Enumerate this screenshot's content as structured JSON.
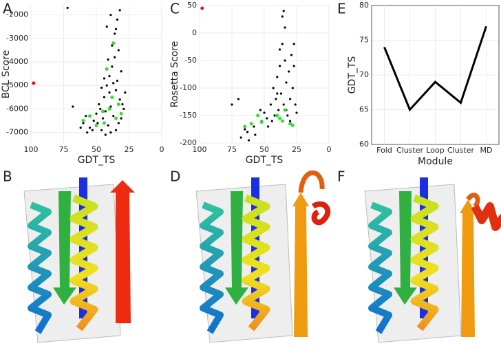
{
  "chart_data": [
    {
      "type": "scatter",
      "panel": "A",
      "x_label": "GDT_TS",
      "y_label": "BCL Score",
      "xlim": [
        100,
        0
      ],
      "xticks": [
        100,
        75,
        50,
        25,
        0
      ],
      "ylim": [
        -7450,
        -1600
      ],
      "yticks": [
        -2000,
        -3000,
        -4000,
        -5000,
        -6000,
        -7000
      ],
      "grid": true,
      "series": [
        {
          "color": "#000000",
          "x": [
            60,
            58,
            55,
            52,
            50,
            48,
            46,
            45,
            44,
            43,
            42,
            41,
            40,
            39,
            38,
            37,
            36,
            35,
            34,
            33,
            32,
            31,
            30,
            36,
            34,
            32,
            38,
            40,
            47,
            53,
            57,
            62,
            49,
            43,
            39,
            35,
            31,
            29,
            33,
            37,
            44,
            41,
            46,
            72,
            68,
            28,
            35,
            39,
            42
          ],
          "y": [
            -6600,
            -6300,
            -6800,
            -6500,
            -6200,
            -5800,
            -6900,
            -6400,
            -5500,
            -6100,
            -5000,
            -6700,
            -4600,
            -5900,
            -4200,
            -6300,
            -3800,
            -5200,
            -4800,
            -6600,
            -5600,
            -4400,
            -5800,
            -2800,
            -2200,
            -1800,
            -3300,
            -5300,
            -6000,
            -6900,
            -7000,
            -6800,
            -6600,
            -7100,
            -7000,
            -6900,
            -6400,
            -6000,
            -3500,
            -4900,
            -4700,
            -3900,
            -5100,
            -1700,
            -5900,
            -5300,
            -2600,
            -2000,
            -2500
          ]
        },
        {
          "color": "#33dd33",
          "x": [
            60,
            55,
            50,
            45,
            40,
            38,
            35,
            33,
            31,
            42,
            37,
            44
          ],
          "y": [
            -6500,
            -6300,
            -6700,
            -6100,
            -6000,
            -5500,
            -6400,
            -5800,
            -6200,
            -4300,
            -3200,
            -6600
          ]
        },
        {
          "color": "#ee1111",
          "x": [
            98
          ],
          "y": [
            -4900
          ]
        }
      ]
    },
    {
      "type": "scatter",
      "panel": "C",
      "x_label": "GDT_TS",
      "y_label": "Rosetta Score",
      "xlim": [
        100,
        0
      ],
      "xticks": [
        100,
        75,
        50,
        25,
        0
      ],
      "ylim": [
        -200,
        50
      ],
      "yticks": [
        50,
        0,
        -50,
        -100,
        -150,
        -200
      ],
      "grid": true,
      "series": [
        {
          "color": "#000000",
          "x": [
            68,
            65,
            63,
            60,
            58,
            55,
            53,
            52,
            50,
            48,
            45,
            43,
            42,
            41,
            40,
            39,
            38,
            37,
            36,
            35,
            34,
            33,
            32,
            31,
            30,
            29,
            28,
            27,
            26,
            25,
            36,
            35,
            38,
            34,
            40,
            44,
            30,
            27,
            33,
            47,
            57,
            75,
            70,
            62
          ],
          "y": [
            -190,
            -175,
            -180,
            -165,
            -170,
            -150,
            -140,
            -160,
            -145,
            -155,
            -130,
            -100,
            -150,
            -120,
            -80,
            -140,
            -60,
            -110,
            -20,
            -130,
            10,
            -90,
            -150,
            -70,
            -120,
            -40,
            -100,
            -60,
            -130,
            -145,
            30,
            40,
            -30,
            -50,
            -110,
            -160,
            -160,
            -20,
            -140,
            -170,
            -185,
            -130,
            -120,
            -195
          ]
        },
        {
          "color": "#33dd33",
          "x": [
            65,
            60,
            55,
            52,
            40,
            36,
            34,
            30,
            28,
            38
          ],
          "y": [
            -170,
            -165,
            -150,
            -162,
            -150,
            -160,
            -140,
            -165,
            -168,
            -155
          ]
        },
        {
          "color": "#ee1111",
          "x": [
            98
          ],
          "y": [
            45
          ]
        }
      ]
    },
    {
      "type": "line",
      "panel": "E",
      "x_label": "Module",
      "y_label": "GDT_TS",
      "categories": [
        "Fold",
        "Cluster",
        "Loop",
        "Cluster",
        "MD"
      ],
      "values": [
        74,
        65,
        69,
        66,
        77
      ],
      "color": "#000000",
      "ylim": [
        60,
        80
      ],
      "yticks": [
        60,
        65,
        70,
        75,
        80
      ],
      "grid": true
    }
  ],
  "structure_panels": [
    "B",
    "D",
    "F"
  ]
}
